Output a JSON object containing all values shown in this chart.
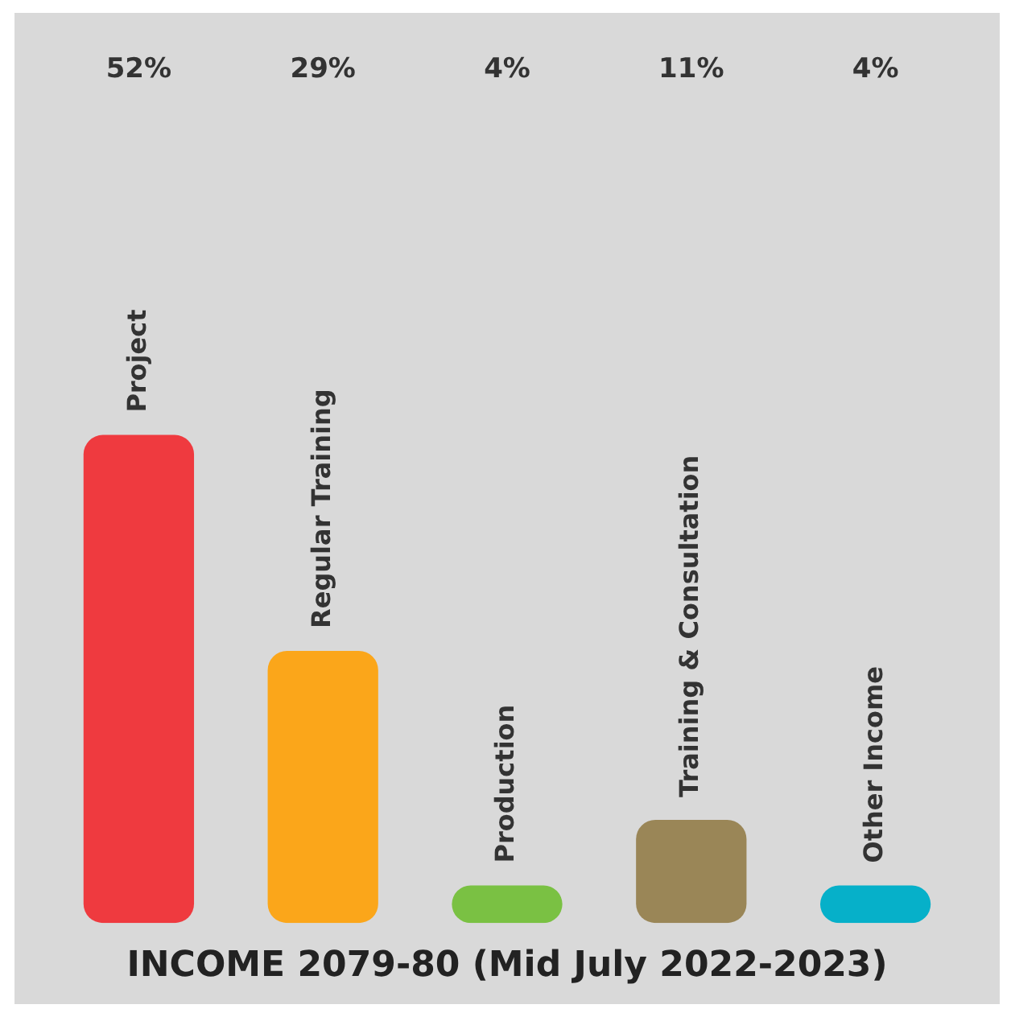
{
  "chart_data": {
    "type": "bar",
    "title": "INCOME 2079-80 (Mid July 2022-2023)",
    "categories": [
      "Project",
      "Regular Training",
      "Production",
      "Training & Consultation",
      "Other Income"
    ],
    "values": [
      52,
      29,
      4,
      11,
      4
    ],
    "colors": [
      "#ef3a3f",
      "#fba61a",
      "#7ac143",
      "#9a8657",
      "#06b0c9"
    ],
    "value_labels": [
      "52%",
      "29%",
      "4%",
      "11%",
      "4%"
    ],
    "legend": false
  }
}
